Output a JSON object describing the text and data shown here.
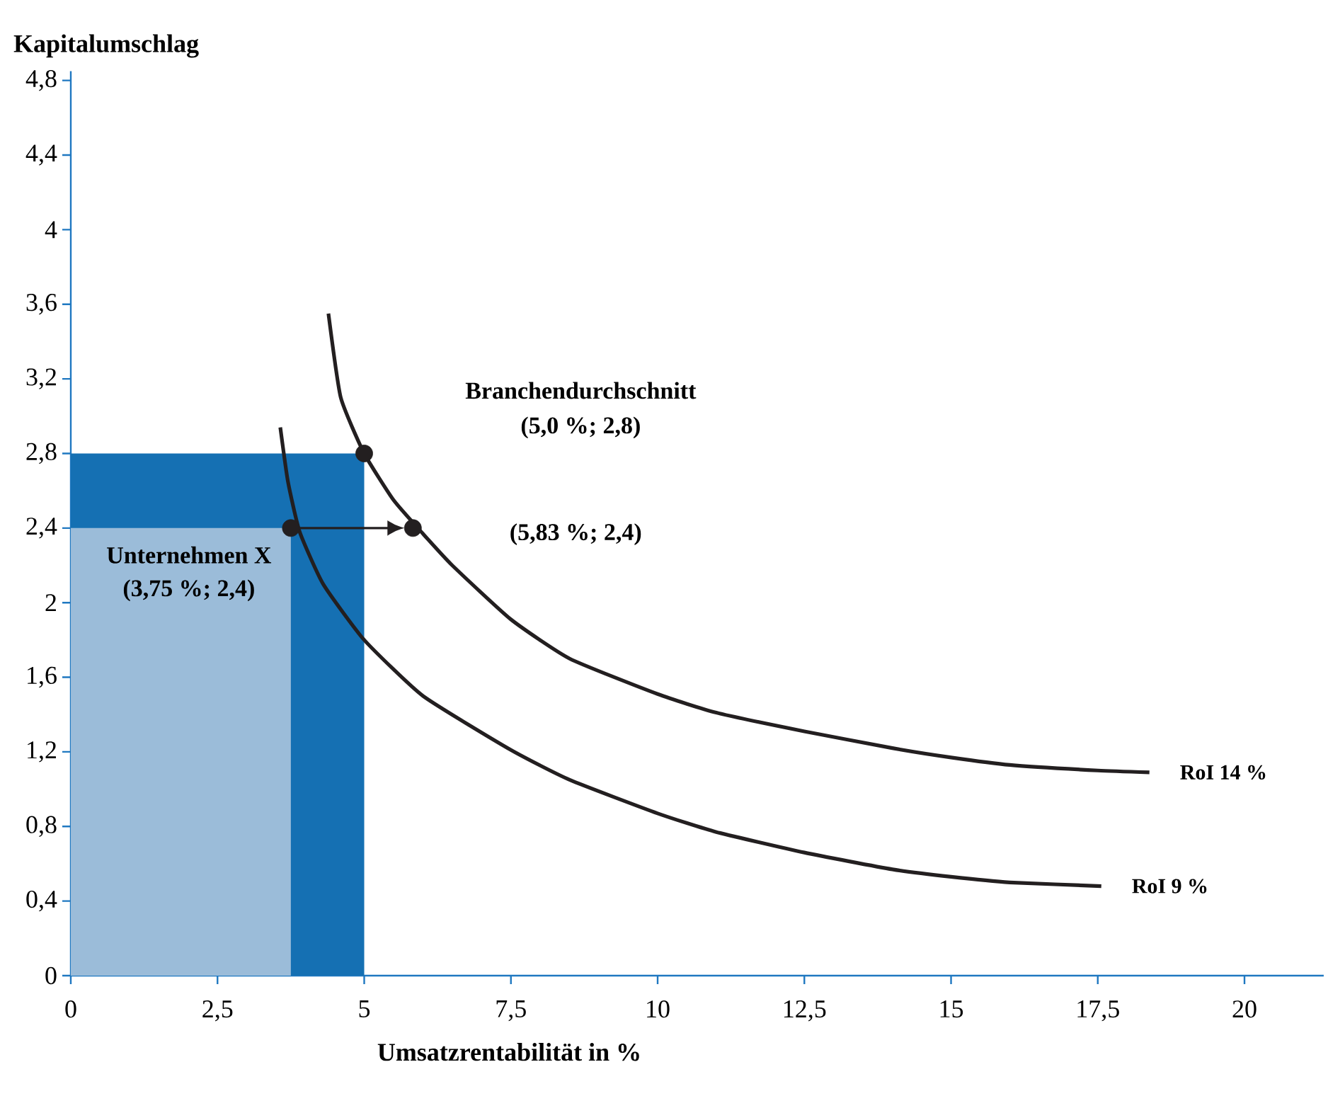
{
  "chart_data": {
    "type": "line",
    "xlabel": "Umsatzrentabilität in %",
    "ylabel": "Kapitalumschlag",
    "xlim": [
      0,
      21.35
    ],
    "ylim": [
      0,
      4.85
    ],
    "xticks": [
      0,
      {
        "value": 2.5,
        "label": "2,5"
      },
      5,
      {
        "value": 7.5,
        "label": "7,5"
      },
      10,
      {
        "value": 12.5,
        "label": "12,5"
      },
      15,
      {
        "value": 17.5,
        "label": "17,5"
      },
      20
    ],
    "yticks": [
      0,
      {
        "value": 0.4,
        "label": "0,4"
      },
      {
        "value": 0.8,
        "label": "0,8"
      },
      {
        "value": 1.2,
        "label": "1,2"
      },
      {
        "value": 1.6,
        "label": "1,6"
      },
      2,
      {
        "value": 2.4,
        "label": "2,4"
      },
      {
        "value": 2.8,
        "label": "2,8"
      },
      {
        "value": 3.2,
        "label": "3,2"
      },
      {
        "value": 3.6,
        "label": "3,6"
      },
      4,
      {
        "value": 4.4,
        "label": "4,4"
      },
      {
        "value": 4.8,
        "label": "4,8"
      }
    ],
    "grid": false,
    "legend": false,
    "series": [
      {
        "type": "area",
        "color": "#1570b3",
        "x": [
          0,
          5
        ],
        "values": [
          2.8,
          2.8
        ]
      },
      {
        "type": "area",
        "color": "#9bbcd9",
        "x": [
          0,
          3.75
        ],
        "values": [
          2.4,
          2.4
        ]
      },
      {
        "name": "RoI 14 %",
        "color": "#231f20",
        "x": [
          4.39,
          4.6,
          5.0,
          5.5,
          6.0,
          6.5,
          7.5,
          8.5,
          10,
          11,
          12.5,
          14,
          15,
          16,
          17.5,
          18.38
        ],
        "values": [
          3.55,
          3.1,
          2.8,
          2.55,
          2.37,
          2.2,
          1.91,
          1.7,
          1.51,
          1.41,
          1.31,
          1.22,
          1.17,
          1.13,
          1.1,
          1.09
        ]
      },
      {
        "name": "RoI 9 %",
        "color": "#231f20",
        "x": [
          3.57,
          3.7,
          3.9,
          4.3,
          5.0,
          6.0,
          7.5,
          8.5,
          10,
          11,
          12.5,
          14,
          15,
          16,
          17.56
        ],
        "values": [
          2.94,
          2.65,
          2.38,
          2.1,
          1.8,
          1.5,
          1.21,
          1.05,
          0.87,
          0.77,
          0.66,
          0.57,
          0.53,
          0.5,
          0.48
        ]
      },
      {
        "type": "scatter",
        "color": "#231f20",
        "marker": "circle",
        "x": [
          5,
          5.83,
          3.75
        ],
        "values": [
          2.8,
          2.4,
          2.4
        ]
      }
    ],
    "annotations": [
      "Branchendurchschnitt",
      "(5,0 %; 2,8)",
      "(5,83 %; 2,4)",
      {
        "text": "Unternehmen X",
        "x": 3.75,
        "y": 2.4
      },
      {
        "text": "(3,75 %; 2,4)",
        "x": 3.75,
        "y": 2.4
      }
    ]
  }
}
